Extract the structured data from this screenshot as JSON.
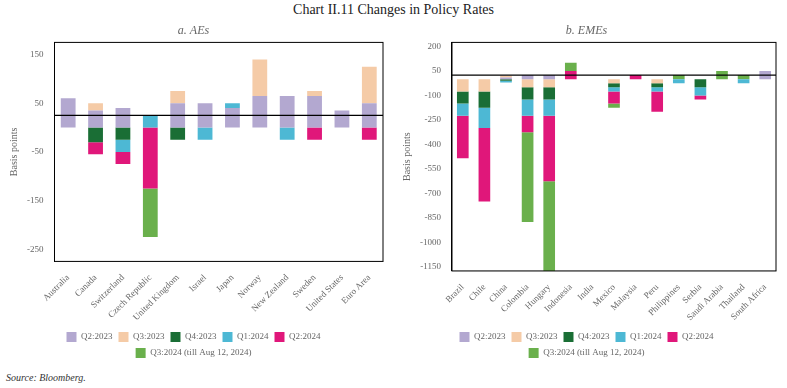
{
  "title": "Chart II.11 Changes in Policy Rates",
  "source": "Source: Bloomberg.",
  "chart_data": [
    {
      "type": "bar",
      "title": "a. AEs",
      "ylabel": "Basis points",
      "stacked": true,
      "grid": false,
      "legend": "bottom",
      "categories": [
        "Australia",
        "Canada",
        "Switzerland",
        "Czech Republic",
        "United Kingdom",
        "Israel",
        "Japan",
        "Norway",
        "New Zealand",
        "Sweden",
        "United States",
        "Euro Area"
      ],
      "series": [
        {
          "name": "Q2:2023",
          "color": "#b3a8d0",
          "values": [
            60,
            35,
            40,
            0,
            50,
            50,
            40,
            65,
            65,
            65,
            35,
            50
          ]
        },
        {
          "name": "Q3:2023",
          "color": "#f5cba7",
          "values": [
            0,
            15,
            0,
            0,
            25,
            0,
            0,
            75,
            0,
            10,
            0,
            75
          ]
        },
        {
          "name": "Q4:2023",
          "color": "#1a6e35",
          "values": [
            0,
            -30,
            -25,
            0,
            -25,
            0,
            0,
            0,
            0,
            0,
            0,
            0
          ]
        },
        {
          "name": "Q1:2024",
          "color": "#4db8d4",
          "values": [
            0,
            0,
            -25,
            25,
            0,
            -25,
            10,
            0,
            -25,
            0,
            0,
            0
          ]
        },
        {
          "name": "Q2:2024",
          "color": "#e0177a",
          "values": [
            0,
            -25,
            -25,
            -125,
            0,
            0,
            0,
            0,
            0,
            -25,
            0,
            -25
          ]
        },
        {
          "name": "Q3:2024 (till Aug 12, 2024)",
          "color": "#6ab04c",
          "values": [
            0,
            0,
            0,
            -100,
            0,
            0,
            0,
            0,
            0,
            0,
            0,
            0
          ]
        }
      ],
      "hline": 25,
      "ylim": [
        -275,
        175
      ],
      "yticks": [
        -250,
        -150,
        -50,
        50,
        150
      ]
    },
    {
      "type": "bar",
      "title": "b. EMEs",
      "ylabel": "Basis points",
      "stacked": true,
      "grid": false,
      "legend": "bottom",
      "categories": [
        "Brazil",
        "Chile",
        "China",
        "Colombia",
        "Hungary",
        "Indonesia",
        "India",
        "Mexico",
        "Malaysia",
        "Peru",
        "Philippines",
        "Serbia",
        "Saudi Arabia",
        "Thailand",
        "South Africa"
      ],
      "series": [
        {
          "name": "Q2:2023",
          "color": "#b3a8d0",
          "values": [
            0,
            0,
            10,
            25,
            25,
            0,
            0,
            0,
            0,
            0,
            0,
            0,
            0,
            0,
            50
          ]
        },
        {
          "name": "Q3:2023",
          "color": "#f5cba7",
          "values": [
            -75,
            -75,
            10,
            -50,
            -50,
            0,
            0,
            -25,
            0,
            -25,
            0,
            0,
            0,
            0,
            0
          ]
        },
        {
          "name": "Q4:2023",
          "color": "#1a6e35",
          "values": [
            -75,
            -100,
            -10,
            -75,
            -75,
            0,
            0,
            -25,
            0,
            -25,
            0,
            -50,
            0,
            0,
            0
          ]
        },
        {
          "name": "Q1:2024",
          "color": "#4db8d4",
          "values": [
            -75,
            -125,
            -10,
            -100,
            -100,
            0,
            0,
            -25,
            0,
            -25,
            -25,
            -50,
            0,
            -25,
            0
          ]
        },
        {
          "name": "Q2:2024",
          "color": "#e0177a",
          "values": [
            -260,
            -450,
            0,
            -100,
            -400,
            50,
            0,
            -75,
            25,
            -125,
            0,
            -25,
            0,
            0,
            0
          ]
        },
        {
          "name": "Q3:2024 (till Aug 12, 2024)",
          "color": "#6ab04c",
          "values": [
            0,
            0,
            0,
            -550,
            -550,
            50,
            0,
            -25,
            0,
            0,
            25,
            0,
            50,
            25,
            0
          ]
        }
      ],
      "hline": 25,
      "ylim": [
        -1175,
        225
      ],
      "yticks": [
        -1150,
        -1000,
        -850,
        -700,
        -550,
        -400,
        -250,
        -100,
        50,
        200
      ]
    }
  ]
}
